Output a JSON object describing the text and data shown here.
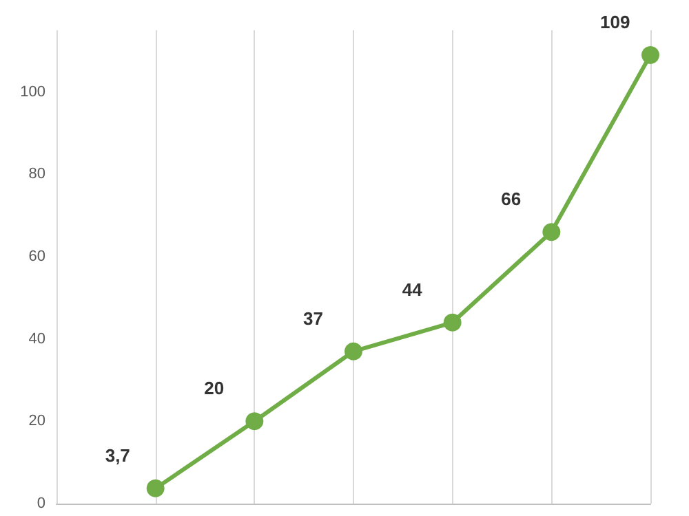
{
  "chart_data": {
    "type": "line",
    "categories": [
      null,
      null,
      null,
      null,
      null,
      null
    ],
    "series": [
      {
        "color": "#70ad47",
        "values": [
          3.7,
          20,
          37,
          44,
          66,
          109
        ],
        "value_labels": [
          "3,7",
          "20",
          "37",
          "44",
          "66",
          "109"
        ]
      }
    ],
    "ylim": [
      0,
      115
    ],
    "yticks": [
      0,
      20,
      40,
      60,
      80,
      100
    ],
    "grid": "x",
    "marker": "circle",
    "line_style": "solid"
  }
}
